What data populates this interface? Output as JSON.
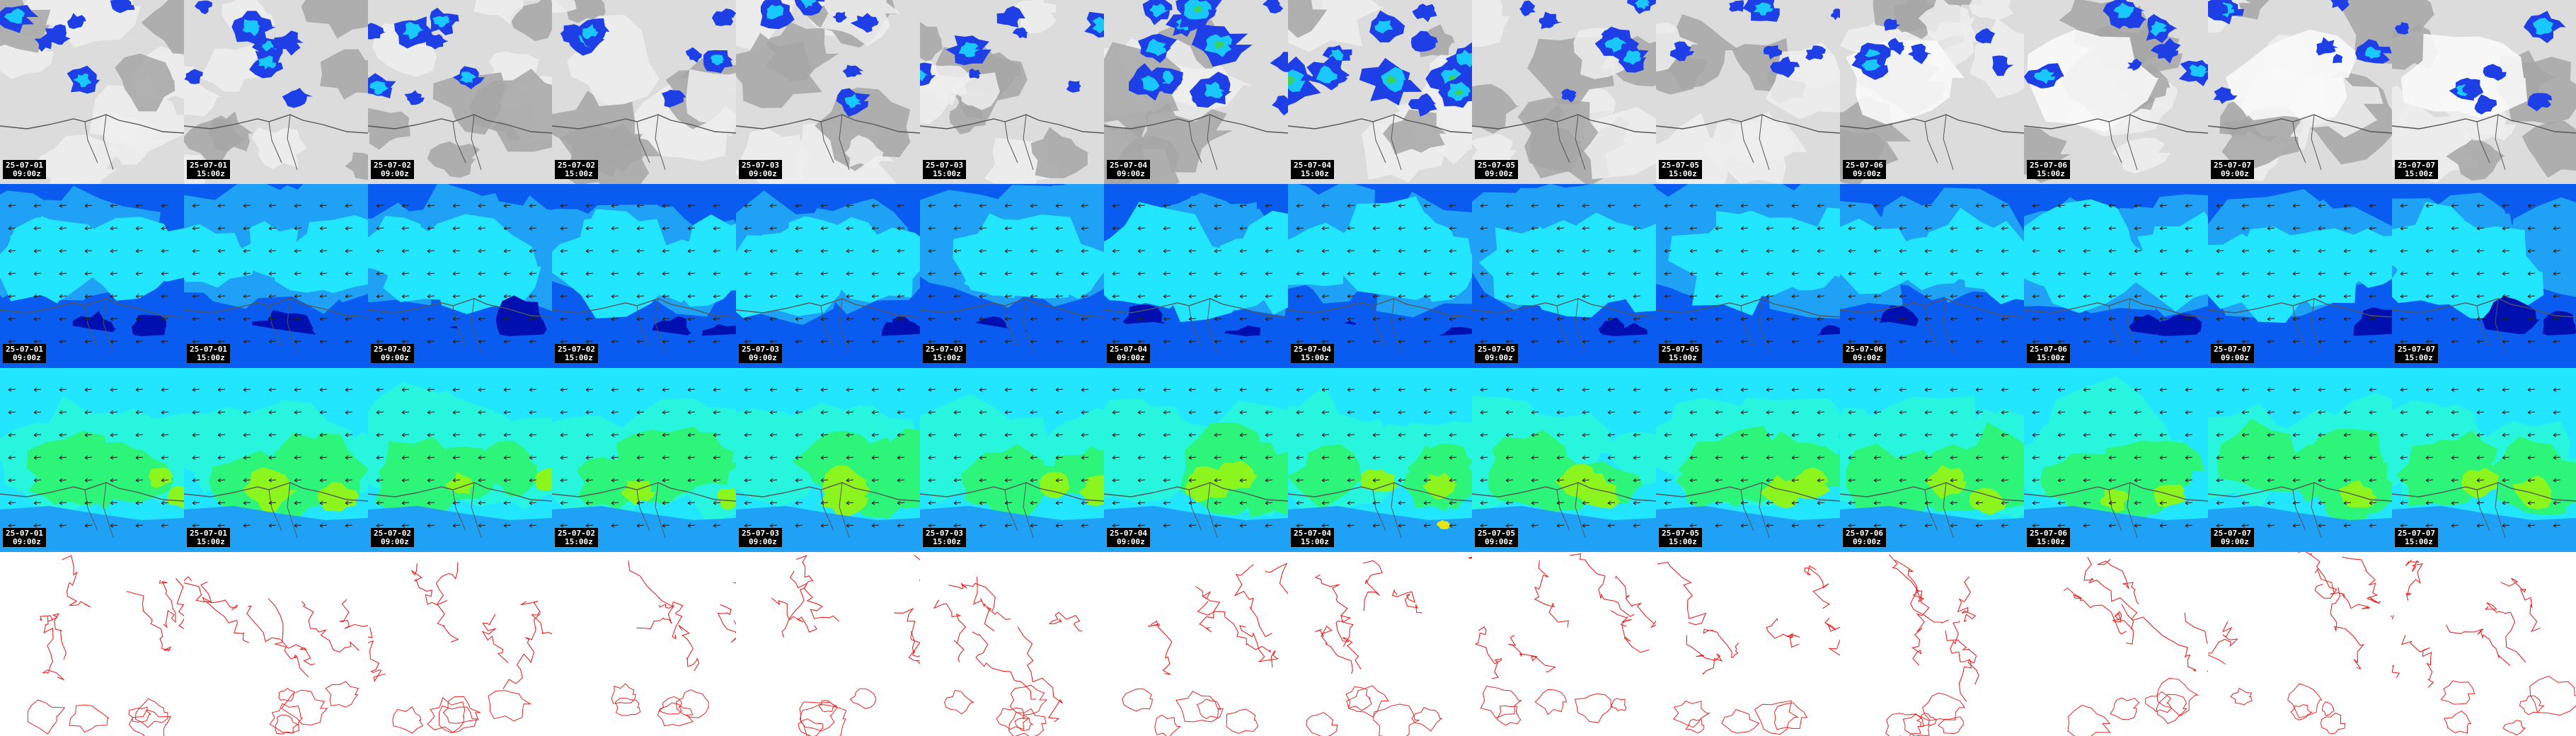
{
  "layout": {
    "columns": 14,
    "rows": 4
  },
  "rows": [
    {
      "id": "precipitation",
      "style": "gray-with-blue-rain",
      "stamped": true
    },
    {
      "id": "wind-field-low",
      "style": "blue-cyan-with-arrows",
      "stamped": true
    },
    {
      "id": "wind-field-high",
      "style": "cyan-green-with-arrows",
      "stamped": true
    },
    {
      "id": "red-isolines",
      "style": "red-contours-on-white",
      "stamped": false
    }
  ],
  "stamps": [
    {
      "date": "25-07-01",
      "time": "09:00z"
    },
    {
      "date": "25-07-01",
      "time": "15:00z"
    },
    {
      "date": "25-07-02",
      "time": "09:00z"
    },
    {
      "date": "25-07-02",
      "time": "15:00z"
    },
    {
      "date": "25-07-03",
      "time": "09:00z"
    },
    {
      "date": "25-07-03",
      "time": "15:00z"
    },
    {
      "date": "25-07-04",
      "time": "09:00z"
    },
    {
      "date": "25-07-04",
      "time": "15:00z"
    },
    {
      "date": "25-07-05",
      "time": "09:00z"
    },
    {
      "date": "25-07-05",
      "time": "15:00z"
    },
    {
      "date": "25-07-06",
      "time": "09:00z"
    },
    {
      "date": "25-07-06",
      "time": "15:00z"
    },
    {
      "date": "25-07-07",
      "time": "09:00z"
    },
    {
      "date": "25-07-07",
      "time": "15:00z"
    }
  ],
  "colors": {
    "coastline": "#555555",
    "gray_dark": "#a6a6a6",
    "gray_light": "#eeeeee",
    "rain_blue": "#1f3fe6",
    "rain_cyan": "#19c8ff",
    "rain_green": "#3ad15c",
    "field_navy": "#0010b0",
    "field_blue": "#0a5cf0",
    "field_sky": "#1fa2f5",
    "field_cyan": "#22e6ff",
    "field_aqua": "#28f5dd",
    "field_green": "#2cf57a",
    "field_lime": "#8cf51e",
    "field_yellow": "#e6e614",
    "isoline_red": "#ee2222"
  }
}
